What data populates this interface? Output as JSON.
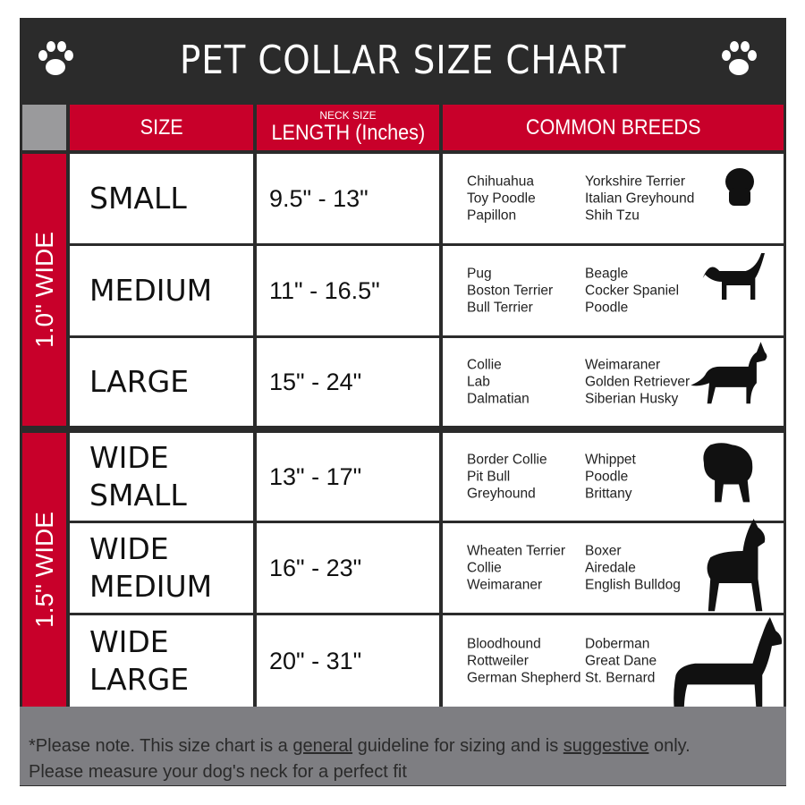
{
  "title": "PET COLLAR SIZE CHART",
  "header": {
    "size": "SIZE",
    "length_small": "NECK SIZE",
    "length": "LENGTH (Inches)",
    "breeds": "COMMON BREEDS"
  },
  "groups": [
    {
      "label": "1.0\" WIDE"
    },
    {
      "label": "1.5\" WIDE"
    }
  ],
  "rows": [
    {
      "size": [
        "SMALL"
      ],
      "length": "9.5\" - 13\"",
      "breeds_a": [
        "Chihuahua",
        "Toy Poodle",
        "Papillon"
      ],
      "breeds_b": [
        "Yorkshire Terrier",
        "Italian Greyhound",
        "Shih Tzu"
      ],
      "icon": "small-dog-silhouette-icon"
    },
    {
      "size": [
        "MEDIUM"
      ],
      "length": "11\" - 16.5\"",
      "breeds_a": [
        "Pug",
        "Boston Terrier",
        "Bull Terrier"
      ],
      "breeds_b": [
        "Beagle",
        "Cocker Spaniel",
        "Poodle"
      ],
      "icon": "dachshund-silhouette-icon"
    },
    {
      "size": [
        "LARGE"
      ],
      "length": "15\" - 24\"",
      "breeds_a": [
        "Collie",
        "Lab",
        "Dalmatian"
      ],
      "breeds_b": [
        "Weimaraner",
        "Golden Retriever",
        "Siberian Husky"
      ],
      "icon": "large-dog-silhouette-icon"
    },
    {
      "size": [
        "WIDE",
        "SMALL"
      ],
      "length": "13\" - 17\"",
      "breeds_a": [
        "Border Collie",
        "Pit Bull",
        "Greyhound"
      ],
      "breeds_b": [
        "Whippet",
        "Poodle",
        "Brittany"
      ],
      "icon": "bulldog-silhouette-icon"
    },
    {
      "size": [
        "WIDE",
        "MEDIUM"
      ],
      "length": "16\" - 23\"",
      "breeds_a": [
        "Wheaten Terrier",
        "Collie",
        "Weimaraner"
      ],
      "breeds_b": [
        "Boxer",
        "Airedale",
        "English Bulldog"
      ],
      "icon": "pitbull-silhouette-icon"
    },
    {
      "size": [
        "WIDE",
        "LARGE"
      ],
      "length": "20\" - 31\"",
      "breeds_a": [
        "Bloodhound",
        "Rottweiler",
        "German Shepherd"
      ],
      "breeds_b": [
        "Doberman",
        "Great Dane",
        "St. Bernard"
      ],
      "icon": "doberman-silhouette-icon"
    }
  ],
  "footer": {
    "p1": "*Please note. This size chart is a ",
    "u1": "general",
    "p2": " guideline for sizing and is ",
    "u2": "suggestive",
    "p3": " only.",
    "line2": "Please measure your dog's neck for a perfect fit"
  },
  "colors": {
    "red": "#c8002a",
    "dark": "#2b2b2b",
    "gray": "#7e7e82"
  }
}
